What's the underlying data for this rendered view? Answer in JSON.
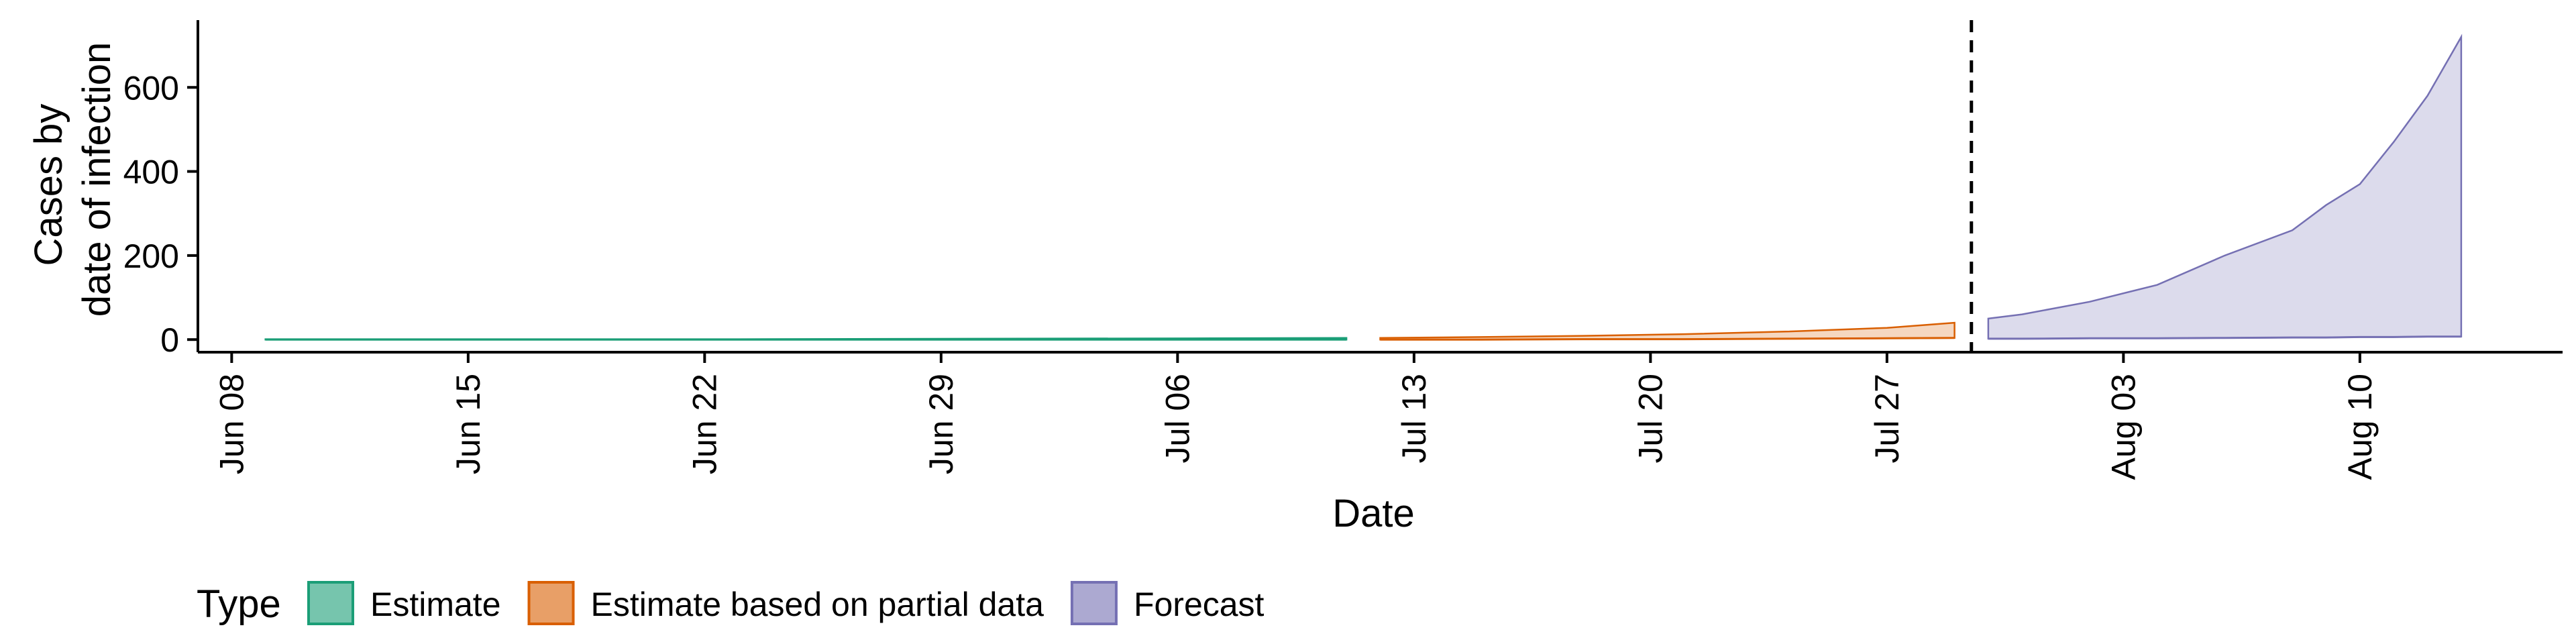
{
  "chart_data": {
    "type": "area",
    "xlabel": "Date",
    "ylabel_lines": [
      "Cases by",
      "date of infection"
    ],
    "ylim": [
      -30,
      760
    ],
    "y_ticks": [
      0,
      200,
      400,
      600
    ],
    "x_ticks": [
      "Jun 08",
      "Jun 15",
      "Jun 22",
      "Jun 29",
      "Jul 06",
      "Jul 13",
      "Jul 20",
      "Jul 27",
      "Aug 03",
      "Aug 10"
    ],
    "x_range": [
      "2020-06-07",
      "2020-08-16"
    ],
    "cutoff_date": "2020-07-29",
    "legend": {
      "title": "Type",
      "position": "bottom-left",
      "items": [
        "Estimate",
        "Estimate based on partial data",
        "Forecast"
      ]
    },
    "colors": {
      "Estimate": "#1b9e77",
      "Estimate based on partial data": "#d95f02",
      "Forecast": "#7570b3"
    },
    "series": [
      {
        "name": "Estimate",
        "x": [
          "2020-06-09",
          "2020-06-16",
          "2020-06-23",
          "2020-06-30",
          "2020-07-07",
          "2020-07-11"
        ],
        "lower": [
          0,
          0,
          0,
          0,
          0,
          0
        ],
        "upper": [
          1,
          1,
          1,
          2,
          3,
          4
        ]
      },
      {
        "name": "Estimate based on partial data",
        "x": [
          "2020-07-12",
          "2020-07-15",
          "2020-07-18",
          "2020-07-21",
          "2020-07-24",
          "2020-07-27",
          "2020-07-29"
        ],
        "lower": [
          0,
          0,
          1,
          1,
          2,
          3,
          4
        ],
        "upper": [
          4,
          6,
          9,
          13,
          19,
          28,
          40
        ]
      },
      {
        "name": "Forecast",
        "x": [
          "2020-07-30",
          "2020-07-31",
          "2020-08-02",
          "2020-08-04",
          "2020-08-06",
          "2020-08-08",
          "2020-08-09",
          "2020-08-10",
          "2020-08-11",
          "2020-08-12",
          "2020-08-13"
        ],
        "lower": [
          2,
          2,
          3,
          3,
          4,
          5,
          5,
          6,
          6,
          7,
          7
        ],
        "upper": [
          50,
          60,
          90,
          130,
          200,
          260,
          320,
          370,
          470,
          580,
          720
        ]
      }
    ]
  }
}
